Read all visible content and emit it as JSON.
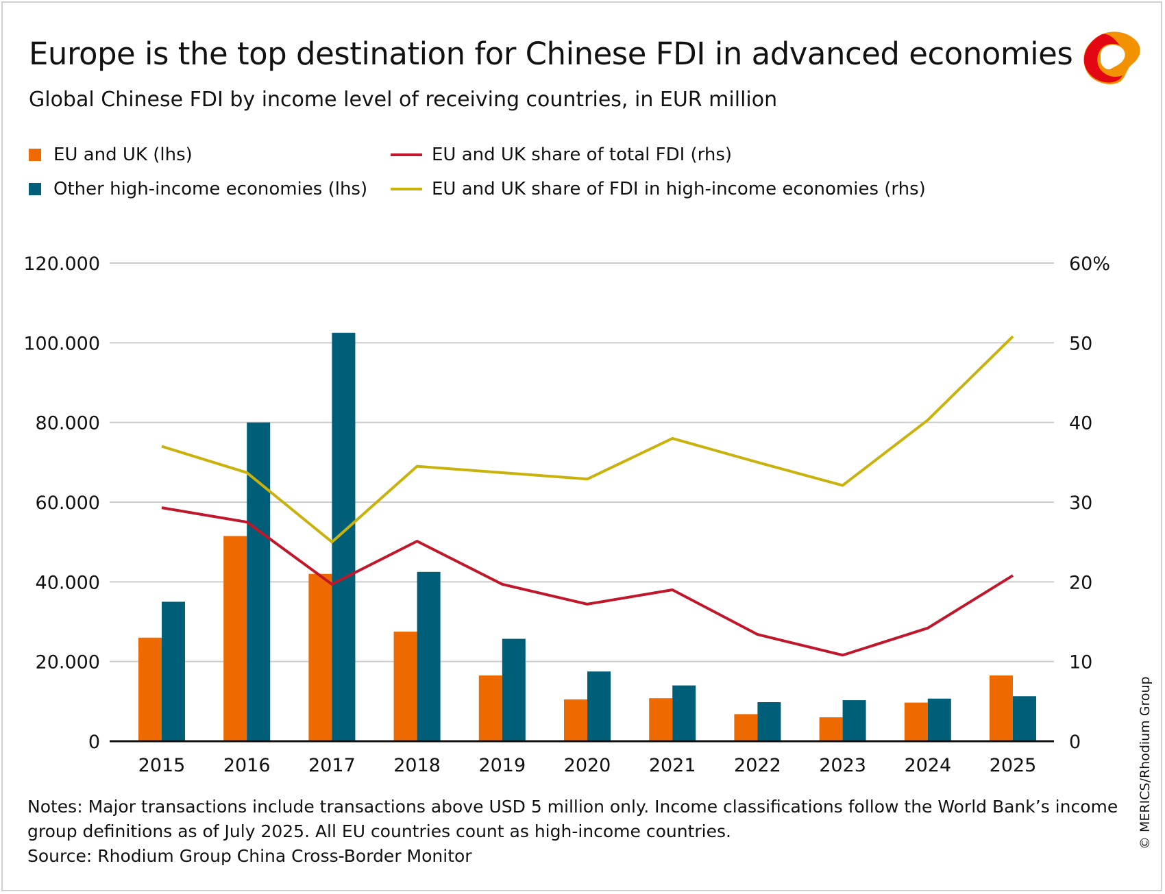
{
  "header": {
    "title": "Europe is the top destination for Chinese FDI in advanced economies",
    "subtitle": "Global Chinese FDI by income level of receiving countries, in EUR million"
  },
  "legend": [
    {
      "label": "EU and UK (lhs)",
      "kind": "bar",
      "color": "#ee6a00"
    },
    {
      "label": "Other high-income economies (lhs)",
      "kind": "bar",
      "color": "#005f78"
    },
    {
      "label": "EU and UK share of total FDI (rhs)",
      "kind": "line",
      "color": "#c0172b"
    },
    {
      "label": "EU and UK share of FDI in high-income economies (rhs)",
      "kind": "line",
      "color": "#c9b20c"
    }
  ],
  "notes": {
    "line1": "Notes: Major transactions include transactions above USD 5 million only. Income classifications follow the World Bank’s income",
    "line2": "group definitions as of July 2025. All EU countries count as high-income countries.",
    "line3": "Source: Rhodium Group China Cross-Border Monitor"
  },
  "copyright": "© MERICS/Rhodium Group",
  "logo": {
    "icon": "merics-logo-icon",
    "colors": [
      "#e30613",
      "#f39200"
    ]
  },
  "chart_data": {
    "type": "bar",
    "categories": [
      "2015",
      "2016",
      "2017",
      "2018",
      "2019",
      "2020",
      "2021",
      "2022",
      "2023",
      "2024",
      "2025"
    ],
    "left_axis": {
      "ylim": [
        0,
        120000
      ],
      "ticks": [
        "0",
        "20.000",
        "40.000",
        "60.000",
        "80.000",
        "100.000",
        "120.000"
      ]
    },
    "right_axis": {
      "ylim": [
        0,
        60
      ],
      "ticks": [
        "0",
        "10",
        "20",
        "30",
        "40",
        "50",
        "60%"
      ]
    },
    "grid": true,
    "series": [
      {
        "name": "EU and UK (lhs)",
        "type": "bar",
        "axis": "left",
        "color": "#ee6a00",
        "values": [
          26000,
          51500,
          42000,
          27500,
          16500,
          10500,
          10800,
          6800,
          6000,
          9700,
          16500
        ]
      },
      {
        "name": "Other high-income economies (lhs)",
        "type": "bar",
        "axis": "left",
        "color": "#005f78",
        "values": [
          35000,
          80000,
          102500,
          42500,
          25700,
          17500,
          14000,
          9800,
          10300,
          10700,
          11300
        ]
      },
      {
        "name": "EU and UK share of total FDI (rhs)",
        "type": "line",
        "axis": "right",
        "color": "#c0172b",
        "values": [
          29.3,
          27.5,
          19.7,
          25.1,
          19.7,
          17.2,
          19.0,
          13.4,
          10.8,
          14.2,
          20.8
        ]
      },
      {
        "name": "EU and UK share of FDI in high-income economies (rhs)",
        "type": "line",
        "axis": "right",
        "color": "#c9b20c",
        "values": [
          37.0,
          33.7,
          25.0,
          34.5,
          33.7,
          32.9,
          38.0,
          35.0,
          32.1,
          40.3,
          50.8
        ]
      }
    ]
  }
}
